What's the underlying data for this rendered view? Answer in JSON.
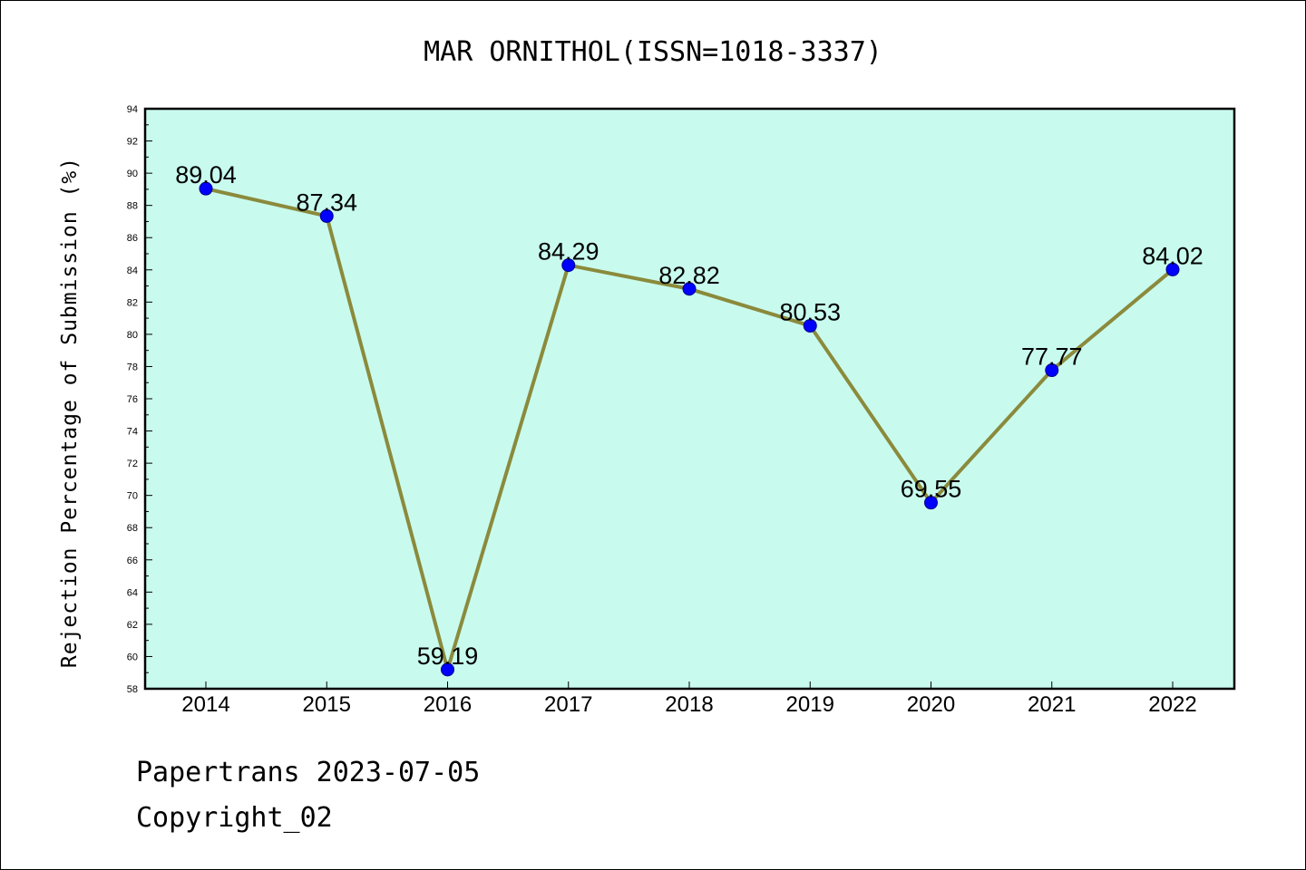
{
  "chart_data": {
    "type": "line",
    "title": "MAR ORNITHOL(ISSN=1018-3337)",
    "xlabel": "",
    "ylabel": "Rejection Percentage of Submission (%)",
    "categories": [
      "2014",
      "2015",
      "2016",
      "2017",
      "2018",
      "2019",
      "2020",
      "2021",
      "2022"
    ],
    "values": [
      89.04,
      87.34,
      59.19,
      84.29,
      82.82,
      80.53,
      69.55,
      77.77,
      84.02
    ],
    "data_labels": [
      "89.04",
      "87.34",
      "59.19",
      "84.29",
      "82.82",
      "80.53",
      "69.55",
      "77.77",
      "84.02"
    ],
    "ylim": [
      58,
      94
    ],
    "yticks": [
      58,
      60,
      62,
      64,
      66,
      68,
      70,
      72,
      74,
      76,
      78,
      80,
      82,
      84,
      86,
      88,
      90,
      92,
      94
    ],
    "grid": false,
    "colors": {
      "plot_background": "#c8fbee",
      "line": "#8b8a3c",
      "marker": "#0000ff"
    }
  },
  "footer": {
    "line1": "Papertrans 2023-07-05",
    "line2": "Copyright_02"
  }
}
